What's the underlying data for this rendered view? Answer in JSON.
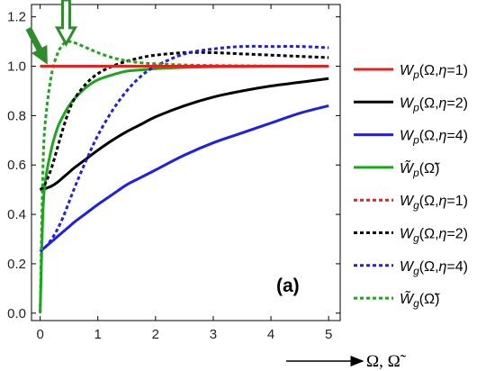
{
  "chart_data": {
    "type": "line",
    "title": "",
    "panel_label": "(a)",
    "xlabel": "Ω, Ω̃",
    "ylabel": "",
    "xlim": [
      -0.15,
      5.2
    ],
    "ylim": [
      -0.03,
      1.25
    ],
    "x_ticks": [
      "0",
      "1",
      "2",
      "3",
      "4",
      "5"
    ],
    "y_ticks": [
      "0.0",
      "0.2",
      "0.4",
      "0.6",
      "0.8",
      "1.0",
      "1.2"
    ],
    "grid": false,
    "legend_position": "right, outside plot",
    "x": [
      0,
      0.05,
      0.1,
      0.2,
      0.3,
      0.4,
      0.5,
      0.6,
      0.8,
      1.0,
      1.25,
      1.5,
      1.75,
      2.0,
      2.5,
      3.0,
      3.5,
      4.0,
      4.5,
      5.0
    ],
    "series": [
      {
        "name": "Wp(Ω,η=1)",
        "color": "#e8201e",
        "dash": "solid",
        "values": [
          1.0,
          1.0,
          1.0,
          1.0,
          1.0,
          1.0,
          1.0,
          1.0,
          1.0,
          1.0,
          1.0,
          1.0,
          1.0,
          1.0,
          1.0,
          1.0,
          1.0,
          1.0,
          1.0,
          1.0
        ]
      },
      {
        "name": "Wp(Ω,η=2)",
        "color": "#000000",
        "dash": "solid",
        "values": [
          0.5,
          0.5,
          0.505,
          0.515,
          0.53,
          0.55,
          0.57,
          0.59,
          0.625,
          0.66,
          0.7,
          0.735,
          0.765,
          0.795,
          0.84,
          0.875,
          0.9,
          0.92,
          0.935,
          0.95
        ]
      },
      {
        "name": "Wp(Ω,η=4)",
        "color": "#1f1fe8",
        "dash": "solid",
        "values": [
          0.25,
          0.26,
          0.27,
          0.29,
          0.31,
          0.33,
          0.35,
          0.37,
          0.405,
          0.44,
          0.48,
          0.52,
          0.55,
          0.58,
          0.64,
          0.69,
          0.73,
          0.77,
          0.81,
          0.84
        ]
      },
      {
        "name": "W̃p(Ω̃)",
        "color": "#1aa81a",
        "dash": "solid",
        "values": [
          0.0,
          0.42,
          0.55,
          0.67,
          0.75,
          0.8,
          0.84,
          0.87,
          0.915,
          0.945,
          0.965,
          0.98,
          0.985,
          0.99,
          0.995,
          0.998,
          0.999,
          1.0,
          1.0,
          1.0
        ]
      },
      {
        "name": "Wg(Ω,η=1)",
        "color": "#e8201e",
        "dash": "dotted",
        "values": [
          1.0,
          1.0,
          1.0,
          1.0,
          1.0,
          1.0,
          1.0,
          1.0,
          1.0,
          1.0,
          1.0,
          1.0,
          1.0,
          1.0,
          1.0,
          1.0,
          1.0,
          1.0,
          1.0,
          1.0
        ]
      },
      {
        "name": "Wg(Ω,η=2)",
        "color": "#000000",
        "dash": "dotted",
        "values": [
          0.5,
          0.51,
          0.53,
          0.59,
          0.67,
          0.75,
          0.82,
          0.87,
          0.93,
          0.97,
          1.0,
          1.02,
          1.035,
          1.045,
          1.055,
          1.055,
          1.05,
          1.045,
          1.04,
          1.035
        ]
      },
      {
        "name": "Wg(Ω,η=4)",
        "color": "#1f1fe8",
        "dash": "dotted",
        "values": [
          0.25,
          0.26,
          0.27,
          0.3,
          0.34,
          0.39,
          0.45,
          0.51,
          0.62,
          0.72,
          0.82,
          0.9,
          0.96,
          1.0,
          1.05,
          1.07,
          1.08,
          1.08,
          1.08,
          1.075
        ]
      },
      {
        "name": "W̃g(Ω̃)",
        "color": "#1aa81a",
        "dash": "dotted",
        "values": [
          0.0,
          0.6,
          0.8,
          0.97,
          1.05,
          1.09,
          1.1,
          1.095,
          1.075,
          1.055,
          1.035,
          1.022,
          1.014,
          1.01,
          1.005,
          1.003,
          1.002,
          1.001,
          1.0,
          1.0
        ]
      }
    ],
    "legend": [
      {
        "base": "W",
        "sub": "p",
        "args": "(Ω,",
        "eta": "η",
        "tail": "=1)",
        "tilde": false,
        "color": "#e8201e",
        "dash": "solid"
      },
      {
        "base": "W",
        "sub": "p",
        "args": "(Ω,",
        "eta": "η",
        "tail": "=2)",
        "tilde": false,
        "color": "#000000",
        "dash": "solid"
      },
      {
        "base": "W",
        "sub": "p",
        "args": "(Ω,",
        "eta": "η",
        "tail": "=4)",
        "tilde": false,
        "color": "#1f1fe8",
        "dash": "solid"
      },
      {
        "base": "W̃",
        "sub": "p",
        "args": "(Ω̃)",
        "eta": "",
        "tail": "",
        "tilde": true,
        "color": "#1aa81a",
        "dash": "solid"
      },
      {
        "base": "W",
        "sub": "g",
        "args": "(Ω,",
        "eta": "η",
        "tail": "=1)",
        "tilde": false,
        "color": "#e8201e",
        "dash": "dotted"
      },
      {
        "base": "W",
        "sub": "g",
        "args": "(Ω,",
        "eta": "η",
        "tail": "=2)",
        "tilde": false,
        "color": "#000000",
        "dash": "dotted"
      },
      {
        "base": "W",
        "sub": "g",
        "args": "(Ω,",
        "eta": "η",
        "tail": "=4)",
        "tilde": false,
        "color": "#1f1fe8",
        "dash": "dotted"
      },
      {
        "base": "W̃",
        "sub": "g",
        "args": "(Ω̃)",
        "eta": "",
        "tail": "",
        "tilde": true,
        "color": "#1aa81a",
        "dash": "dotted"
      }
    ],
    "annotations": [
      {
        "type": "solid-arrow",
        "color": "#2e8b2e",
        "target_x": 0.12,
        "target_y": 1.01
      },
      {
        "type": "hollow-arrow",
        "color": "#2e8b2e",
        "target_x": 0.45,
        "target_y": 1.09
      }
    ]
  }
}
